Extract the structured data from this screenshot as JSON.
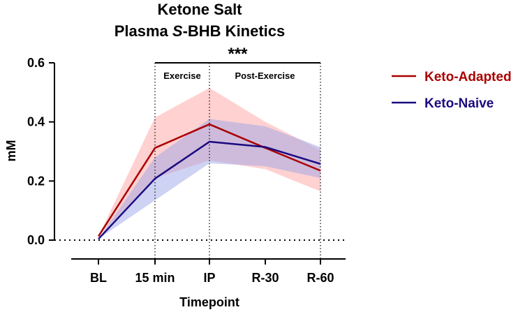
{
  "chart_data": {
    "type": "line",
    "title_line1": "Ketone Salt",
    "title_line2_prefix": "Plasma ",
    "title_line2_italic": "S",
    "title_line2_suffix": "-BHB Kinetics",
    "xlabel": "Timepoint",
    "ylabel": "mM",
    "categories": [
      "BL",
      "15 min",
      "IP",
      "R-30",
      "R-60"
    ],
    "ylim": [
      0,
      0.6
    ],
    "yticks": [
      "0.0",
      "0.2",
      "0.4",
      "0.6"
    ],
    "ytick_values": [
      0.0,
      0.2,
      0.4,
      0.6
    ],
    "baseline": 0.0,
    "regions": [
      {
        "label": "Exercise",
        "from_index": 1,
        "to_index": 2
      },
      {
        "label": "Post-Exercise",
        "from_index": 2,
        "to_index": 4
      }
    ],
    "significance": {
      "label": "***",
      "from_index": 1,
      "to_index": 4
    },
    "series": [
      {
        "name": "Keto-Adapted",
        "color": "#aa0000",
        "band_color": "#ff9a9a",
        "values": [
          0.013,
          0.312,
          0.392,
          0.312,
          0.235
        ],
        "lower": [
          0.013,
          0.21,
          0.27,
          0.24,
          0.165
        ],
        "upper": [
          0.013,
          0.415,
          0.515,
          0.4,
          0.305
        ]
      },
      {
        "name": "Keto-Naive",
        "color": "#1a0a80",
        "band_color": "#9ea6e8",
        "values": [
          0.004,
          0.208,
          0.333,
          0.315,
          0.258
        ],
        "lower": [
          0.004,
          0.135,
          0.26,
          0.25,
          0.21
        ],
        "upper": [
          0.004,
          0.28,
          0.41,
          0.385,
          0.315
        ]
      }
    ]
  }
}
